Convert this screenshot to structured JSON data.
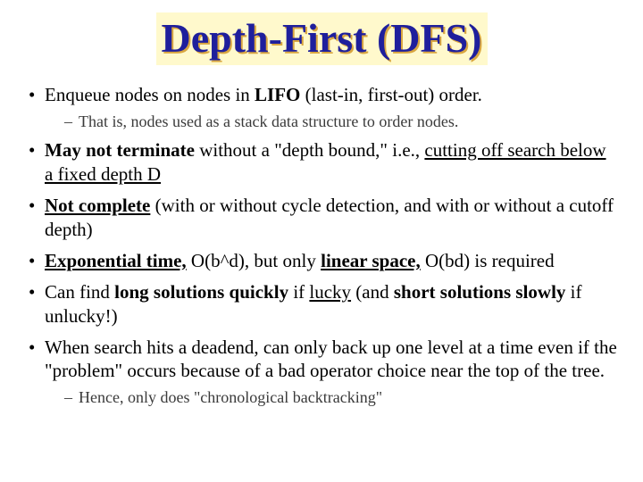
{
  "colors": {
    "title_color": "#1f1f9c",
    "title_shadow": "#d9a640",
    "title_background": "#fff9cc",
    "body_text": "#000000",
    "sub_text": "#3a3a3a",
    "page_background": "#ffffff"
  },
  "typography": {
    "family": "Times New Roman",
    "title_fontsize_pt": 34,
    "level1_fontsize_pt": 16,
    "level2_fontsize_pt": 13
  },
  "title": "Depth-First (DFS)",
  "bullets": {
    "b1": {
      "t1": "Enqueue nodes on nodes in ",
      "t2": "LIFO",
      "t3": " (last-in, first-out) order.",
      "sub1": "That is, nodes used as a stack data structure to order nodes."
    },
    "b2": {
      "t1": "May not terminate",
      "t2": " without a \"depth bound,\" i.e., ",
      "t3": "cutting off search below a fixed depth D"
    },
    "b3": {
      "t1": "Not complete",
      "t2": " (with or without cycle detection, and with or without a cutoff depth)"
    },
    "b4": {
      "t1": "Exponential time,",
      "t2": " O(b^d), but only ",
      "t3": "linear space,",
      "t4": " O(bd) is required"
    },
    "b5": {
      "t1": "Can find ",
      "t2": "long solutions quickly",
      "t3": " if ",
      "t4": "lucky",
      "t5": " (and ",
      "t6": "short solutions slowly",
      "t7": " if unlucky!)"
    },
    "b6": {
      "t1": "When search hits a deadend, can only back up one level at a time even if the \"problem\" occurs because of a bad operator choice near the top of the tree.",
      "sub1": "Hence, only does \"chronological backtracking\""
    }
  }
}
